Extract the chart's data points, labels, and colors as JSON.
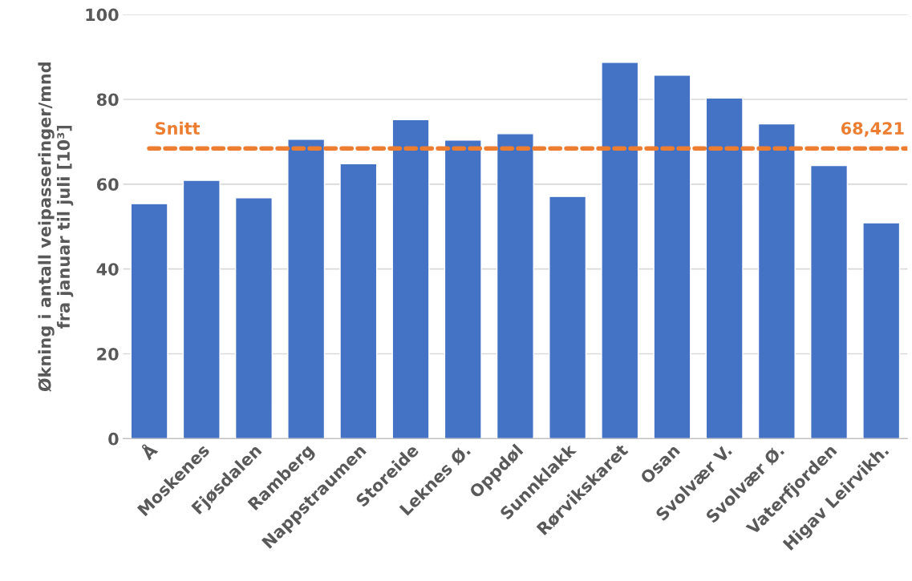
{
  "chart_data": {
    "type": "bar",
    "ylabel": "Økning i antall veipasseringer/mnd\nfra januar til juli [10³]",
    "categories": [
      "Å",
      "Moskenes",
      "Fjøsdalen",
      "Ramberg",
      "Nappstraumen",
      "Storeide",
      "Leknes Ø.",
      "Oppdøl",
      "Sunnklakk",
      "Rørvikskaret",
      "Osan",
      "Svolvær V.",
      "Svolvær Ø.",
      "Vaterfjorden",
      "Higav Leirvikh."
    ],
    "values": [
      55.4,
      60.9,
      56.8,
      70.6,
      64.8,
      75.2,
      70.4,
      71.9,
      57.1,
      88.7,
      85.7,
      80.3,
      74.2,
      64.4,
      50.9
    ],
    "color": "#4472c4",
    "ylim": [
      0,
      100
    ],
    "yticks": [
      0,
      20,
      40,
      60,
      80,
      100
    ],
    "grid": "y",
    "ref_lines": [
      {
        "axis": "y",
        "value": 68.421,
        "label": "Snitt",
        "color": "#ed7d31",
        "line_style": "dashed"
      }
    ],
    "annotations": [
      {
        "text": "68,421",
        "x": "Higav Leirvikh.",
        "y": 68.421
      }
    ]
  }
}
